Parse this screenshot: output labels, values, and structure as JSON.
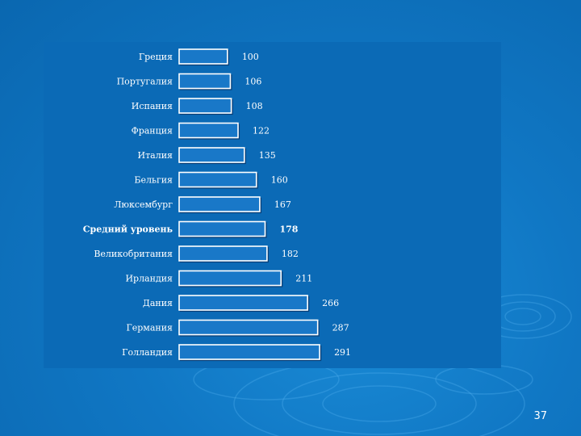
{
  "page": {
    "number": "37"
  },
  "chart_data": {
    "type": "bar",
    "orientation": "horizontal",
    "title": "",
    "xlabel": "",
    "ylabel": "",
    "categories": [
      "Греция",
      "Португалия",
      "Испания",
      "Франция",
      "Италия",
      "Бельгия",
      "Люксембург",
      "Средний уровень",
      "Великобритания",
      "Ирландия",
      "Дания",
      "Германия",
      "Голландия"
    ],
    "values": [
      100,
      106,
      108,
      122,
      135,
      160,
      167,
      178,
      182,
      211,
      266,
      287,
      291
    ],
    "value_labels": [
      "100",
      "106",
      "108",
      "122",
      "135",
      "160",
      "167",
      "178",
      "182",
      "211",
      "266",
      "287",
      "291"
    ],
    "highlight_category": "Средний уровень",
    "data_labels": true,
    "grid": false,
    "legend": "none",
    "colors": {
      "bar_fill": "#1978c8",
      "bar_outline": "#ffffff",
      "text": "#ffffff",
      "panel": "#0b6ab6"
    }
  }
}
